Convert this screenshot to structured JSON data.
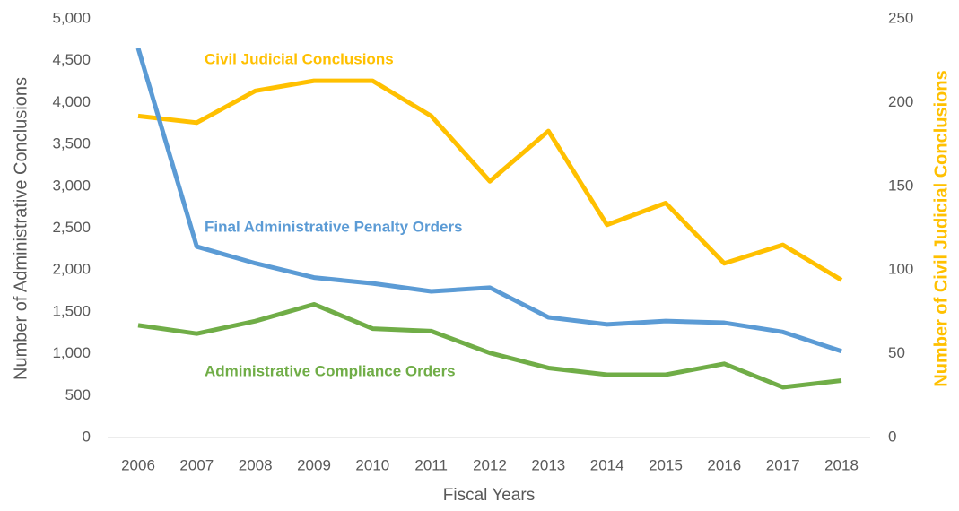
{
  "chart_data": {
    "type": "line",
    "xlabel": "Fiscal Years",
    "ylabel": "Number of Administrative Conclusions",
    "y2label": "Number of Civil Judicial Conclusions",
    "categories": [
      "2006",
      "2007",
      "2008",
      "2009",
      "2010",
      "2011",
      "2012",
      "2013",
      "2014",
      "2015",
      "2016",
      "2017",
      "2018"
    ],
    "series": [
      {
        "name": "Civil Judicial Conclusions",
        "color": "#ffc000",
        "axis": "y2",
        "values": [
          192,
          188,
          207,
          213,
          213,
          192,
          153,
          183,
          127,
          140,
          104,
          115,
          94
        ]
      },
      {
        "name": "Final Administrative Penalty Orders",
        "color": "#5b9bd5",
        "values": [
          4650,
          2280,
          2080,
          1910,
          1840,
          1745,
          1790,
          1435,
          1350,
          1390,
          1370,
          1260,
          1030
        ]
      },
      {
        "name": "Administrative Compliance Orders",
        "color": "#70ad47",
        "values": [
          1340,
          1240,
          1390,
          1590,
          1300,
          1270,
          1010,
          830,
          750,
          750,
          880,
          600,
          680
        ]
      }
    ],
    "ylim": [
      0,
      5000
    ],
    "yticks": [
      0,
      500,
      {
        "value": 1000,
        "label": "1,000"
      },
      {
        "value": 1500,
        "label": "1,500"
      },
      {
        "value": 2000,
        "label": "2,000"
      },
      {
        "value": 2500,
        "label": "2,500"
      },
      {
        "value": 3000,
        "label": "3,000"
      },
      {
        "value": 3500,
        "label": "3,500"
      },
      {
        "value": 4000,
        "label": "4,000"
      },
      {
        "value": 4500,
        "label": "4,500"
      },
      {
        "value": 5000,
        "label": "5,000"
      }
    ],
    "y2lim": [
      0,
      250
    ],
    "y2ticks": [
      0,
      50,
      100,
      150,
      200,
      250
    ],
    "grid": false
  }
}
